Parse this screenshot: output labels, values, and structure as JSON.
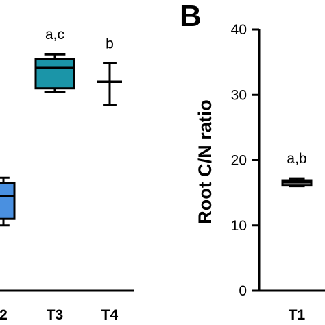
{
  "chart_data": [
    {
      "panel_label": "",
      "type": "box",
      "categories": [
        "2",
        "T3",
        "T4"
      ],
      "ylim": [
        0,
        40
      ],
      "ylabel": "",
      "boxes": [
        {
          "category": "2",
          "whisker_low": 10.0,
          "q1": 11.0,
          "median": 14.5,
          "q3": 16.5,
          "whisker_high": 17.3,
          "color": "#4a90e0",
          "sig": ""
        },
        {
          "category": "T3",
          "whisker_low": 30.5,
          "q1": 31.0,
          "median": 34.2,
          "q3": 35.5,
          "whisker_high": 36.2,
          "color": "#1b95a8",
          "sig": "a,c"
        },
        {
          "category": "T4",
          "whisker_low": 28.5,
          "q1": 32.0,
          "median": 32.0,
          "q3": 32.0,
          "whisker_high": 34.8,
          "color": "#ffffff",
          "sig": "b"
        }
      ]
    },
    {
      "panel_label": "B",
      "type": "box",
      "categories": [
        "T1"
      ],
      "ylim": [
        0,
        40
      ],
      "yticks": [
        "0",
        "10",
        "20",
        "30",
        "40"
      ],
      "ylabel": "Root  C/N ratio",
      "boxes": [
        {
          "category": "T1",
          "whisker_low": 16.0,
          "q1": 16.1,
          "median": 16.6,
          "q3": 16.9,
          "whisker_high": 17.2,
          "color": "#ffffff",
          "sig": "a,b"
        }
      ]
    }
  ]
}
